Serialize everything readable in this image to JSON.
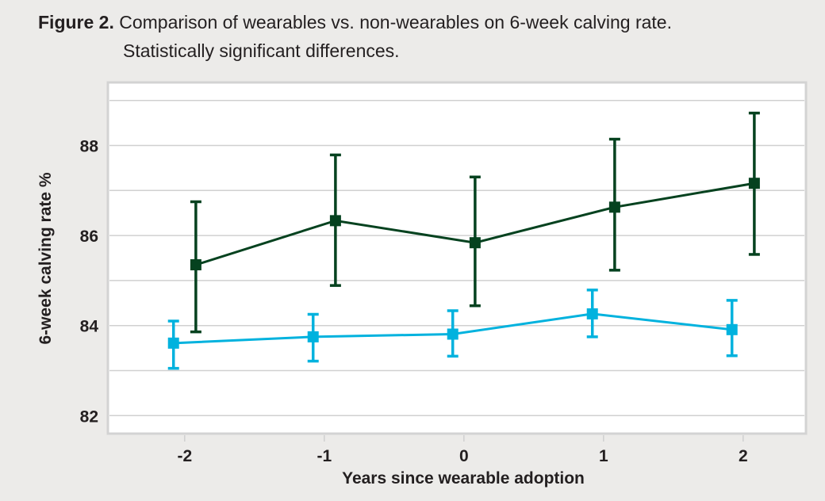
{
  "caption": {
    "label": "Figure 2.",
    "line1": "Comparison of wearables vs. non-wearables on 6-week calving rate.",
    "line2": "Statistically significant differences."
  },
  "chart_data": {
    "type": "line",
    "title": "Figure 2. Comparison of wearables vs. non-wearables on 6-week calving rate. Statistically significant differences.",
    "xlabel": "Years since wearable adoption",
    "ylabel": "6-week calving rate %",
    "x": [
      -2,
      -1,
      0,
      1,
      2
    ],
    "x_tick_labels": [
      "-2",
      "-1",
      "0",
      "1",
      "2"
    ],
    "y_tick_labels": [
      "82",
      "84",
      "86",
      "88"
    ],
    "y_ticks": [
      82,
      84,
      86,
      88
    ],
    "ylim": [
      81.6,
      89.4
    ],
    "xlim": [
      -2.55,
      2.45
    ],
    "grid": true,
    "grid_step": 1,
    "series": [
      {
        "name": "Wearables",
        "color": "#05421f",
        "marker": "square",
        "x_offset": 0.08,
        "values": [
          85.35,
          86.33,
          85.84,
          86.63,
          87.16
        ],
        "error_upper": [
          86.75,
          87.79,
          87.3,
          88.14,
          88.72
        ],
        "error_lower": [
          83.86,
          84.89,
          84.44,
          85.23,
          85.58
        ]
      },
      {
        "name": "Non-wearables",
        "color": "#00b2de",
        "marker": "square",
        "x_offset": -0.08,
        "values": [
          83.61,
          83.75,
          83.81,
          84.26,
          83.91
        ],
        "error_upper": [
          84.1,
          84.25,
          84.33,
          84.79,
          84.56
        ],
        "error_lower": [
          83.05,
          83.21,
          83.32,
          83.75,
          83.33
        ]
      }
    ]
  }
}
